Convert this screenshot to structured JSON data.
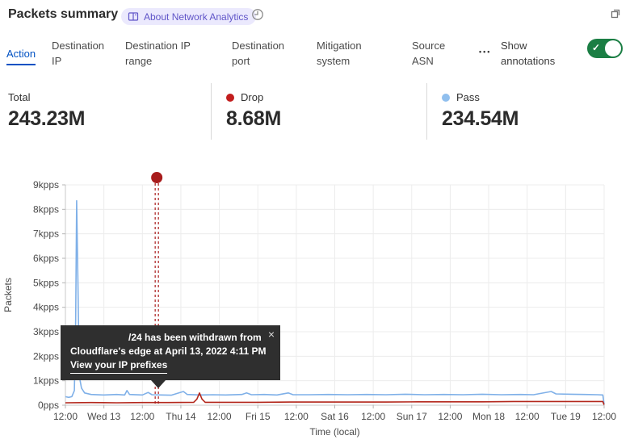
{
  "header": {
    "title": "Packets summary",
    "badge_label": "About Network Analytics"
  },
  "tabs": {
    "items": [
      {
        "label": "Action",
        "active": true
      },
      {
        "label": "Destination IP",
        "active": false
      },
      {
        "label": "Destination IP range",
        "active": false
      },
      {
        "label": "Destination port",
        "active": false
      },
      {
        "label": "Mitigation system",
        "active": false
      },
      {
        "label": "Source ASN",
        "active": false
      }
    ],
    "more_label": "•••",
    "annotations_label": "Show annotations",
    "annotations_toggle_on": true
  },
  "stats": {
    "items": [
      {
        "label": "Total",
        "value": "243.23M",
        "dot_color": null
      },
      {
        "label": "Drop",
        "value": "8.68M",
        "dot_color": "#c21d1d"
      },
      {
        "label": "Pass",
        "value": "234.54M",
        "dot_color": "#90bfee"
      }
    ]
  },
  "tooltip": {
    "line1": "/24 has been withdrawn from",
    "line2": "Cloudflare's edge at April 13, 2022 4:11 PM",
    "link": "View your IP prefixes",
    "close": "×"
  },
  "colors": {
    "accent_blue": "#0051c3",
    "toggle_green": "#1b7e44",
    "pass_line": "#7fb0e8",
    "drop_line": "#b3271c",
    "annotation_red": "#a81c1c",
    "badge_bg": "#ebe9fd",
    "badge_text": "#6055c8"
  },
  "chart_data": {
    "type": "line",
    "title": "Packets summary",
    "xlabel": "Time (local)",
    "ylabel": "Packets",
    "x_ticks": [
      "12:00",
      "Wed 13",
      "12:00",
      "Thu 14",
      "12:00",
      "Fri 15",
      "12:00",
      "Sat 16",
      "12:00",
      "Sun 17",
      "12:00",
      "Mon 18",
      "12:00",
      "Tue 19",
      "12:00"
    ],
    "y_ticks": [
      "0pps",
      "1kpps",
      "2kpps",
      "3kpps",
      "4kpps",
      "5kpps",
      "6kpps",
      "7kpps",
      "8kpps",
      "9kpps"
    ],
    "ylim": [
      0,
      9
    ],
    "y_unit": "kpps",
    "x_hours_range": [
      0,
      168
    ],
    "grid": true,
    "legend_position": "none",
    "series": [
      {
        "name": "Pass",
        "color": "#7fb0e8",
        "points": [
          [
            0,
            0.35
          ],
          [
            1,
            0.32
          ],
          [
            2,
            0.35
          ],
          [
            2.8,
            0.6
          ],
          [
            3.2,
            3.5
          ],
          [
            3.5,
            8.35
          ],
          [
            3.9,
            5.0
          ],
          [
            4.3,
            1.2
          ],
          [
            5,
            0.7
          ],
          [
            6,
            0.5
          ],
          [
            8,
            0.44
          ],
          [
            12,
            0.42
          ],
          [
            16,
            0.44
          ],
          [
            18.5,
            0.42
          ],
          [
            19.2,
            0.6
          ],
          [
            20,
            0.44
          ],
          [
            24,
            0.42
          ],
          [
            25.8,
            0.52
          ],
          [
            27,
            0.43
          ],
          [
            30,
            0.42
          ],
          [
            33,
            0.41
          ],
          [
            36.8,
            0.56
          ],
          [
            38,
            0.44
          ],
          [
            42,
            0.42
          ],
          [
            46,
            0.43
          ],
          [
            50,
            0.42
          ],
          [
            55,
            0.44
          ],
          [
            56.5,
            0.5
          ],
          [
            58,
            0.43
          ],
          [
            62,
            0.44
          ],
          [
            66,
            0.42
          ],
          [
            69.5,
            0.5
          ],
          [
            71,
            0.43
          ],
          [
            76,
            0.43
          ],
          [
            82,
            0.44
          ],
          [
            88,
            0.43
          ],
          [
            94,
            0.44
          ],
          [
            100,
            0.43
          ],
          [
            106,
            0.45
          ],
          [
            112,
            0.43
          ],
          [
            118,
            0.44
          ],
          [
            124,
            0.43
          ],
          [
            130,
            0.45
          ],
          [
            136,
            0.43
          ],
          [
            142,
            0.44
          ],
          [
            146,
            0.43
          ],
          [
            151.5,
            0.56
          ],
          [
            153,
            0.46
          ],
          [
            158,
            0.45
          ],
          [
            162,
            0.44
          ],
          [
            166,
            0.43
          ],
          [
            167.6,
            0.42
          ],
          [
            168,
            0.04
          ]
        ]
      },
      {
        "name": "Drop",
        "color": "#b3271c",
        "points": [
          [
            0,
            0.1
          ],
          [
            8,
            0.11
          ],
          [
            16,
            0.1
          ],
          [
            24,
            0.11
          ],
          [
            32,
            0.11
          ],
          [
            40,
            0.12
          ],
          [
            41,
            0.25
          ],
          [
            41.8,
            0.5
          ],
          [
            42.6,
            0.25
          ],
          [
            43.6,
            0.12
          ],
          [
            50,
            0.12
          ],
          [
            60,
            0.12
          ],
          [
            70,
            0.13
          ],
          [
            80,
            0.13
          ],
          [
            90,
            0.13
          ],
          [
            100,
            0.13
          ],
          [
            110,
            0.14
          ],
          [
            120,
            0.14
          ],
          [
            130,
            0.14
          ],
          [
            140,
            0.15
          ],
          [
            150,
            0.15
          ],
          [
            160,
            0.15
          ],
          [
            167.6,
            0.15
          ],
          [
            168,
            0.02
          ]
        ]
      }
    ],
    "annotation": {
      "x_hours": 28.5,
      "color": "#a81c1c",
      "label": "/24 has been withdrawn from Cloudflare's edge at April 13, 2022 4:11 PM"
    }
  }
}
